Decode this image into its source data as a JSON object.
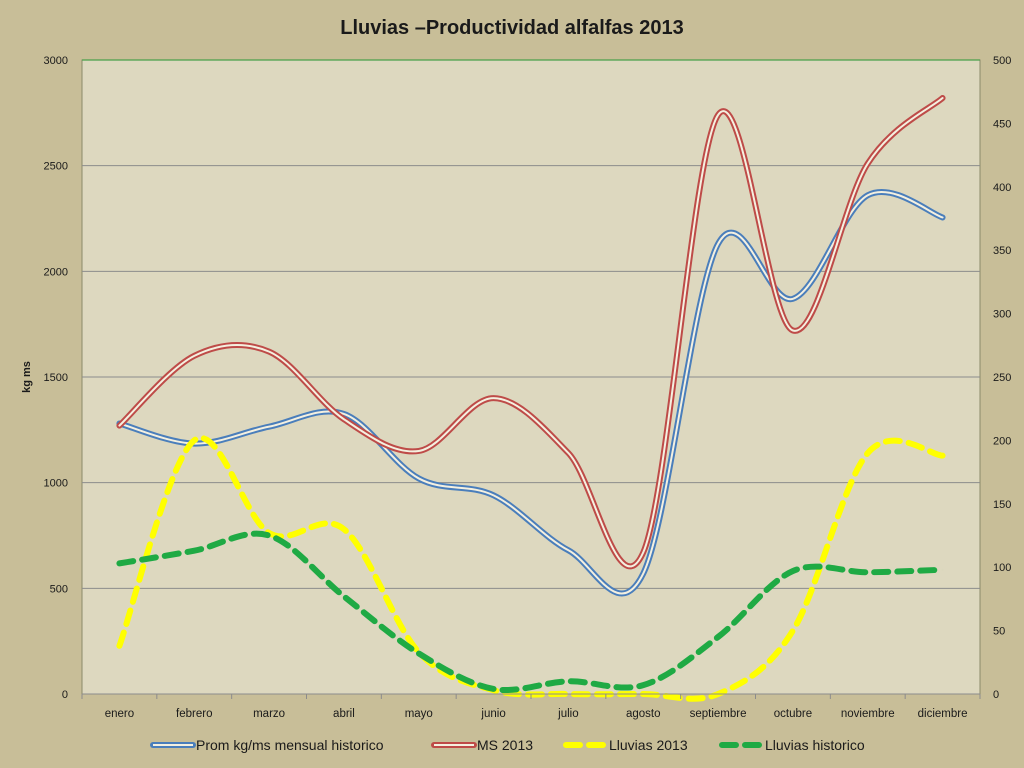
{
  "chart_data": {
    "type": "line",
    "title": "Lluvias –Productividad  alfalfas 2013",
    "xlabel": "",
    "ylabel": "kg ms",
    "y2label": "",
    "categories": [
      "enero",
      "febrero",
      "marzo",
      "abril",
      "mayo",
      "junio",
      "julio",
      "agosto",
      "septiembre",
      "octubre",
      "noviembre",
      "diciembre"
    ],
    "ylim": [
      0,
      3000
    ],
    "y_ticks": [
      0,
      500,
      1000,
      1500,
      2000,
      2500,
      3000
    ],
    "y2lim": [
      0,
      500
    ],
    "y2_ticks": [
      0,
      50,
      100,
      150,
      200,
      250,
      300,
      350,
      400,
      450,
      500
    ],
    "grid": true,
    "legend_position": "bottom",
    "background_color": "#ddd8bf",
    "page_color": "#c8be98",
    "series": [
      {
        "name": "Prom kg/ms mensual historico",
        "axis": "left",
        "style": "double",
        "color": "#4a7ebb",
        "values": [
          1280,
          1185,
          1265,
          1325,
          1020,
          940,
          680,
          570,
          2130,
          1870,
          2360,
          2255
        ]
      },
      {
        "name": "MS 2013",
        "axis": "left",
        "style": "double",
        "color": "#be4b48",
        "values": [
          1270,
          1600,
          1620,
          1300,
          1150,
          1400,
          1140,
          670,
          2740,
          1720,
          2510,
          2820
        ]
      },
      {
        "name": "Lluvias 2013",
        "axis": "right",
        "style": "dashed",
        "color": "#ffff00",
        "values": [
          38,
          200,
          127,
          130,
          33,
          3,
          0,
          0,
          0,
          50,
          190,
          188
        ]
      },
      {
        "name": "Lluvias historico",
        "axis": "right",
        "style": "dashed",
        "color": "#1faa44",
        "values": [
          103,
          113,
          125,
          77,
          32,
          4,
          10,
          7,
          45,
          97,
          96,
          98
        ]
      }
    ]
  }
}
